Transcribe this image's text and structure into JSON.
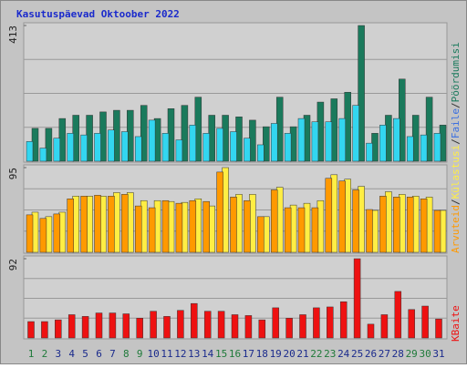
{
  "chart_data": [
    {
      "type": "bar",
      "title": "Kasutuspäevad Oktoober 2022",
      "categories": [
        "1",
        "2",
        "3",
        "4",
        "5",
        "6",
        "7",
        "8",
        "9",
        "10",
        "11",
        "12",
        "13",
        "14",
        "15",
        "16",
        "17",
        "18",
        "19",
        "20",
        "21",
        "22",
        "23",
        "24",
        "25",
        "26",
        "27",
        "28",
        "29",
        "30",
        "31"
      ],
      "category_colors": [
        "#1f7a3a",
        "#1f7a3a",
        "#1a2a8c",
        "#1a2a8c",
        "#1a2a8c",
        "#1a2a8c",
        "#1a2a8c",
        "#1f7a3a",
        "#1f7a3a",
        "#1a2a8c",
        "#1a2a8c",
        "#1a2a8c",
        "#1a2a8c",
        "#1a2a8c",
        "#1f7a3a",
        "#1f7a3a",
        "#1a2a8c",
        "#1a2a8c",
        "#1a2a8c",
        "#1a2a8c",
        "#1a2a8c",
        "#1f7a3a",
        "#1f7a3a",
        "#1a2a8c",
        "#1a2a8c",
        "#1a2a8c",
        "#1a2a8c",
        "#1a2a8c",
        "#1f7a3a",
        "#1f7a3a",
        "#1a2a8c"
      ],
      "ylim": [
        0,
        413
      ],
      "yticks": [
        413
      ],
      "series": [
        {
          "name": "Pöördumisi",
          "color": "#1a7a5c",
          "values": [
            100,
            100,
            130,
            140,
            140,
            150,
            155,
            155,
            170,
            130,
            160,
            170,
            195,
            140,
            140,
            135,
            125,
            105,
            195,
            105,
            140,
            180,
            190,
            210,
            413,
            85,
            140,
            250,
            140,
            195,
            110
          ]
        },
        {
          "name": "Faile",
          "color": "#33d6f0",
          "values": [
            60,
            40,
            70,
            85,
            80,
            85,
            95,
            90,
            75,
            125,
            85,
            65,
            110,
            85,
            100,
            90,
            70,
            50,
            115,
            85,
            130,
            120,
            120,
            130,
            170,
            55,
            110,
            130,
            75,
            80,
            85
          ]
        }
      ]
    },
    {
      "type": "bar",
      "ylim": [
        0,
        95
      ],
      "yticks": [
        95
      ],
      "series": [
        {
          "name": "Külastusi",
          "color": "#ffee44",
          "values": [
            45,
            40,
            45,
            63,
            63,
            63,
            67,
            67,
            58,
            58,
            57,
            56,
            60,
            52,
            95,
            65,
            65,
            40,
            73,
            53,
            55,
            58,
            87,
            82,
            74,
            47,
            68,
            65,
            63,
            62,
            47
          ]
        },
        {
          "name": "Arvuteid",
          "color": "#ff9900",
          "values": [
            42,
            38,
            43,
            60,
            63,
            64,
            63,
            65,
            52,
            50,
            58,
            55,
            58,
            57,
            90,
            62,
            58,
            40,
            70,
            50,
            50,
            50,
            83,
            80,
            70,
            48,
            63,
            62,
            62,
            60,
            47
          ]
        }
      ]
    },
    {
      "type": "bar",
      "ylim": [
        0,
        92
      ],
      "yticks": [
        92
      ],
      "series": [
        {
          "name": "KBaite",
          "color": "#ee1111",
          "values": [
            19,
            19,
            21,
            27,
            25,
            29,
            29,
            28,
            23,
            31,
            25,
            32,
            40,
            31,
            31,
            27,
            26,
            21,
            35,
            23,
            27,
            35,
            36,
            42,
            92,
            16,
            27,
            54,
            33,
            37,
            22
          ]
        }
      ]
    }
  ],
  "legend_separator": "/"
}
